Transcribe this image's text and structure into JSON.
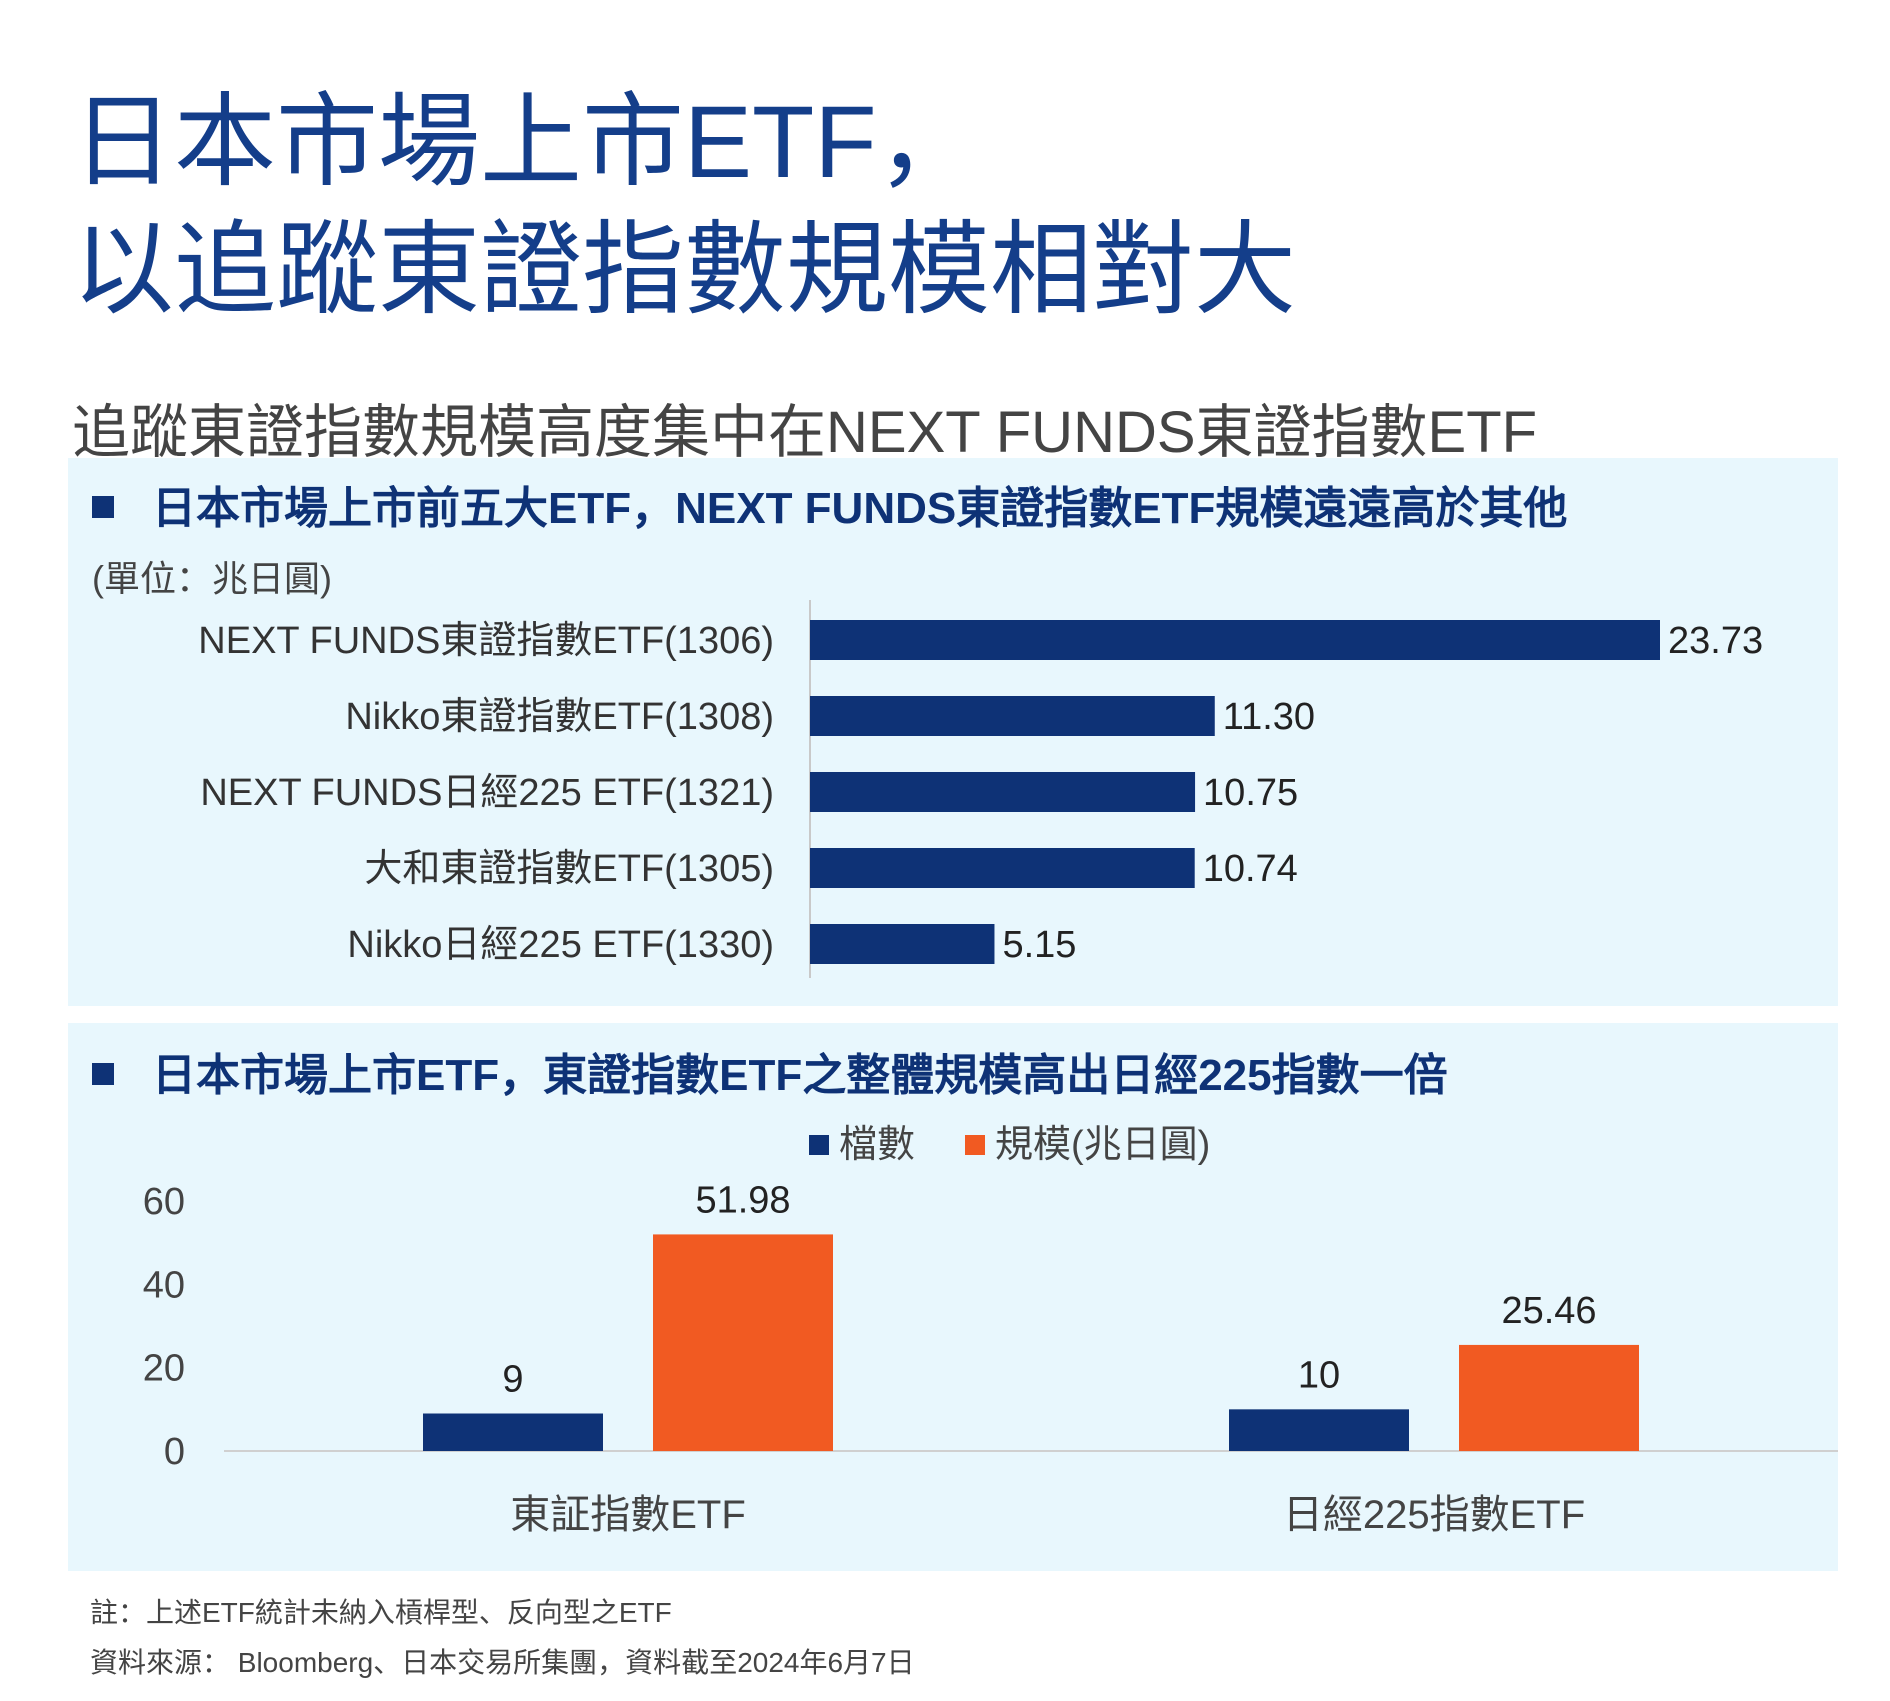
{
  "title": {
    "line1": "日本市場上市ETF，",
    "line2": "以追蹤東證指數規模相對大"
  },
  "subtitle": "追蹤東證指數規模高度集中在NEXT FUNDS東證指數ETF",
  "panel1": {
    "heading": "日本市場上市前五大ETF，NEXT FUNDS東證指數ETF規模遠遠高於其他",
    "unit": "(單位：兆日圓)"
  },
  "panel2": {
    "heading": "日本市場上市ETF，東證指數ETF之整體規模高出日經225指數一倍"
  },
  "colors": {
    "navy": "#0e3276",
    "orange": "#f15a22",
    "panel_bg": "#e8f7fd"
  },
  "chart_data": [
    {
      "type": "bar",
      "orientation": "horizontal",
      "categories": [
        "NEXT FUNDS東證指數ETF(1306)",
        "Nikko東證指數ETF(1308)",
        "NEXT FUNDS日經225 ETF(1321)",
        "大和東證指數ETF(1305)",
        "Nikko日經225 ETF(1330)"
      ],
      "values": [
        23.73,
        11.3,
        10.75,
        10.74,
        5.15
      ],
      "value_labels": [
        "23.73",
        "11.30",
        "10.75",
        "10.74",
        "5.15"
      ],
      "xlim": [
        0,
        23.73
      ],
      "grid": false,
      "color": "#0e3276"
    },
    {
      "type": "bar",
      "orientation": "vertical",
      "categories": [
        "東証指數ETF",
        "日經225指數ETF"
      ],
      "series": [
        {
          "name": "檔數",
          "values": [
            9,
            10
          ],
          "labels": [
            "9",
            "10"
          ],
          "color": "#0e3276"
        },
        {
          "name": "規模(兆日圓)",
          "values": [
            51.98,
            25.46
          ],
          "labels": [
            "51.98",
            "25.46"
          ],
          "color": "#f15a22"
        }
      ],
      "ylim": [
        0,
        60
      ],
      "yticks": [
        "0",
        "20",
        "40",
        "60"
      ],
      "legend_position": "top-center",
      "grid": false
    }
  ],
  "footnotes": {
    "note": "註：上述ETF統計未納入槓桿型、反向型之ETF",
    "source": "資料來源： Bloomberg、日本交易所集團，資料截至2024年6月7日"
  }
}
